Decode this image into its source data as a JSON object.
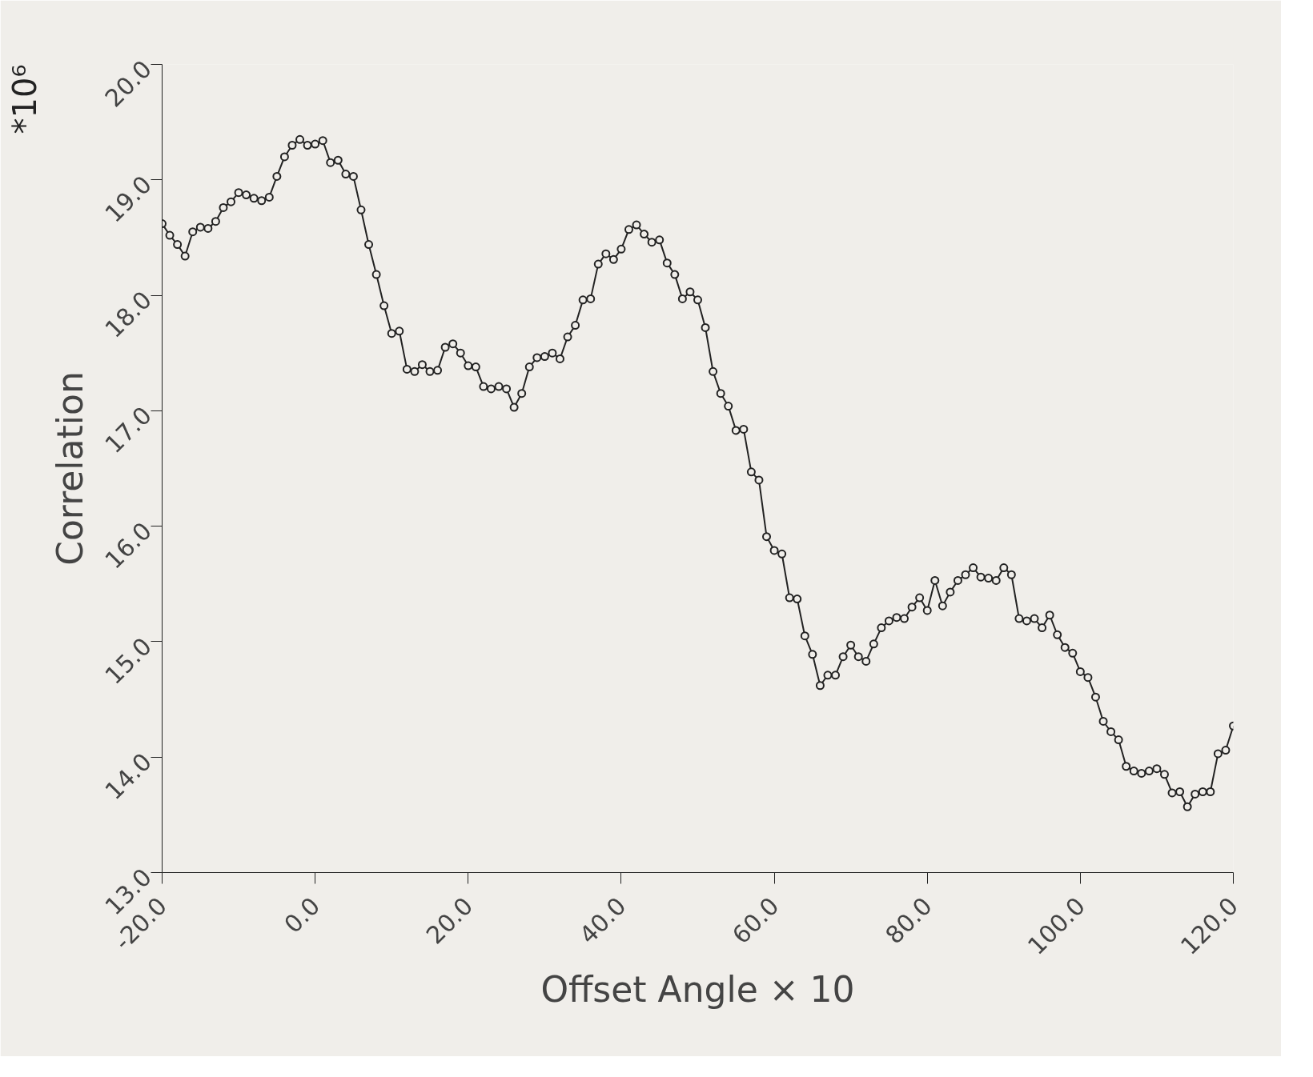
{
  "chart_data": {
    "type": "line",
    "xlabel": "Offset Angle × 10",
    "ylabel": "Correlation",
    "annotations": [
      "*10⁶"
    ],
    "x": [
      -20,
      -19,
      -18,
      -17,
      -16,
      -15,
      -14,
      -13,
      -12,
      -11,
      -10,
      -9,
      -8,
      -7,
      -6,
      -5,
      -4,
      -3,
      -2,
      -1,
      0,
      1,
      2,
      3,
      4,
      5,
      6,
      7,
      8,
      9,
      10,
      11,
      12,
      13,
      14,
      15,
      16,
      17,
      18,
      19,
      20,
      21,
      22,
      23,
      24,
      25,
      26,
      27,
      28,
      29,
      30,
      31,
      32,
      33,
      34,
      35,
      36,
      37,
      38,
      39,
      40,
      41,
      42,
      43,
      44,
      45,
      46,
      47,
      48,
      49,
      50,
      51,
      52,
      53,
      54,
      55,
      56,
      57,
      58,
      59,
      60,
      61,
      62,
      63,
      64,
      65,
      66,
      67,
      68,
      69,
      70,
      71,
      72,
      73,
      74,
      75,
      76,
      77,
      78,
      79,
      80,
      81,
      82,
      83,
      84,
      85,
      86,
      87,
      88,
      89,
      90,
      91,
      92,
      93,
      94,
      95,
      96,
      97,
      98,
      99,
      100,
      101,
      102,
      103,
      104,
      105,
      106,
      107,
      108,
      109,
      110,
      111,
      112,
      113,
      114,
      115,
      116,
      117,
      118,
      119,
      120
    ],
    "series": [
      {
        "color": "#222222",
        "values": [
          18.62,
          18.52,
          18.44,
          18.34,
          18.55,
          18.59,
          18.58,
          18.64,
          18.76,
          18.81,
          18.89,
          18.87,
          18.84,
          18.82,
          18.85,
          19.03,
          19.2,
          19.3,
          19.35,
          19.3,
          19.31,
          19.34,
          19.15,
          19.17,
          19.05,
          19.03,
          18.74,
          18.44,
          18.18,
          17.91,
          17.67,
          17.69,
          17.36,
          17.34,
          17.4,
          17.34,
          17.35,
          17.55,
          17.58,
          17.5,
          17.39,
          17.38,
          17.21,
          17.19,
          17.21,
          17.19,
          17.03,
          17.15,
          17.38,
          17.46,
          17.47,
          17.5,
          17.45,
          17.64,
          17.74,
          17.96,
          17.97,
          18.27,
          18.36,
          18.31,
          18.4,
          18.57,
          18.61,
          18.53,
          18.46,
          18.48,
          18.28,
          18.18,
          17.97,
          18.03,
          17.96,
          17.72,
          17.34,
          17.15,
          17.04,
          16.83,
          16.84,
          16.47,
          16.4,
          15.91,
          15.79,
          15.76,
          15.38,
          15.37,
          15.05,
          14.89,
          14.62,
          14.71,
          14.71,
          14.87,
          14.97,
          14.87,
          14.83,
          14.98,
          15.12,
          15.18,
          15.21,
          15.2,
          15.3,
          15.38,
          15.27,
          15.53,
          15.31,
          15.43,
          15.53,
          15.58,
          15.64,
          15.56,
          15.55,
          15.53,
          15.64,
          15.58,
          15.2,
          15.18,
          15.2,
          15.12,
          15.23,
          15.06,
          14.95,
          14.9,
          14.74,
          14.69,
          14.52,
          14.31,
          14.22,
          14.15,
          13.92,
          13.88,
          13.86,
          13.88,
          13.9,
          13.85,
          13.69,
          13.7,
          13.57,
          13.68,
          13.7,
          13.7,
          14.03,
          14.06,
          14.27
        ]
      }
    ],
    "xlim": [
      -20,
      120
    ],
    "xticks": [
      {
        "value": -20,
        "label": "-20.0"
      },
      {
        "value": 0,
        "label": "0.0"
      },
      {
        "value": 20,
        "label": "20.0"
      },
      {
        "value": 40,
        "label": "40.0"
      },
      {
        "value": 60,
        "label": "60.0"
      },
      {
        "value": 80,
        "label": "80.0"
      },
      {
        "value": 100,
        "label": "100.0"
      },
      {
        "value": 120,
        "label": "120.0"
      }
    ],
    "ylim": [
      13,
      20
    ],
    "yticks": [
      {
        "value": 13,
        "label": "13.0"
      },
      {
        "value": 14,
        "label": "14.0"
      },
      {
        "value": 15,
        "label": "15.0"
      },
      {
        "value": 16,
        "label": "16.0"
      },
      {
        "value": 17,
        "label": "17.0"
      },
      {
        "value": 18,
        "label": "18.0"
      },
      {
        "value": 19,
        "label": "19.0"
      },
      {
        "value": 20,
        "label": "20.0"
      }
    ],
    "marker": "circle",
    "line_style": "solid"
  }
}
